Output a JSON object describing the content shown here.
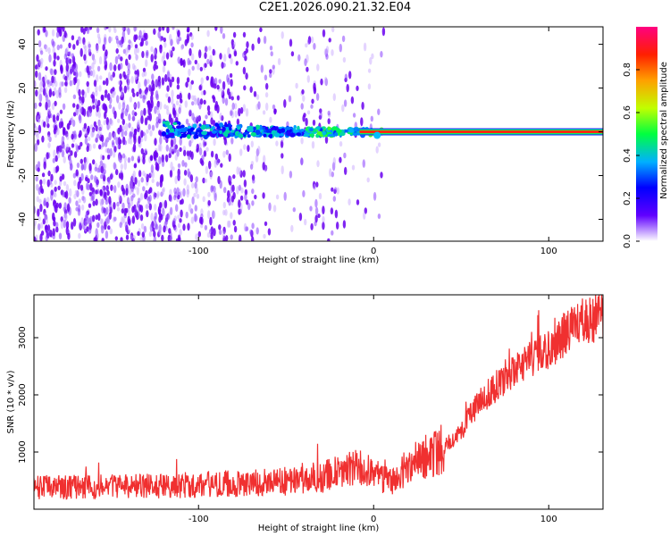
{
  "title": "C2E1.2026.090.21.32.E04",
  "chart_data": [
    {
      "type": "heatmap",
      "name": "spectrogram",
      "xlabel": "Height of straight line (km)",
      "ylabel": "Frequency (Hz)",
      "xlim": [
        -194,
        131
      ],
      "ylim": [
        -50,
        48
      ],
      "xticks": [
        -100,
        0,
        100
      ],
      "yticks": [
        -40,
        -20,
        0,
        20,
        40
      ],
      "colorbar": {
        "label": "Normalized spectral amplitude",
        "range": [
          0,
          1
        ],
        "ticks": [
          "0.0",
          "0.2",
          "0.4",
          "0.6",
          "0.8"
        ]
      },
      "line_frequency_hz": 0,
      "line_start_km": -120
    },
    {
      "type": "line",
      "name": "snr",
      "xlabel": "Height of straight line (km)",
      "ylabel": "SNR (10 * v/v)",
      "xlim": [
        -194,
        131
      ],
      "ylim": [
        0,
        3750
      ],
      "xticks": [
        -100,
        0,
        100
      ],
      "yticks": [
        1000,
        2000,
        3000
      ],
      "color": "#f03030",
      "x": [
        -194,
        -160,
        -130,
        -100,
        -70,
        -50,
        -30,
        -10,
        0,
        10,
        20,
        30,
        40,
        50,
        60,
        70,
        80,
        90,
        100,
        110,
        120,
        131
      ],
      "values": [
        380,
        390,
        400,
        430,
        460,
        490,
        560,
        720,
        640,
        460,
        780,
        920,
        1080,
        1380,
        1860,
        2150,
        2380,
        2600,
        2780,
        3100,
        3280,
        3380
      ]
    }
  ]
}
